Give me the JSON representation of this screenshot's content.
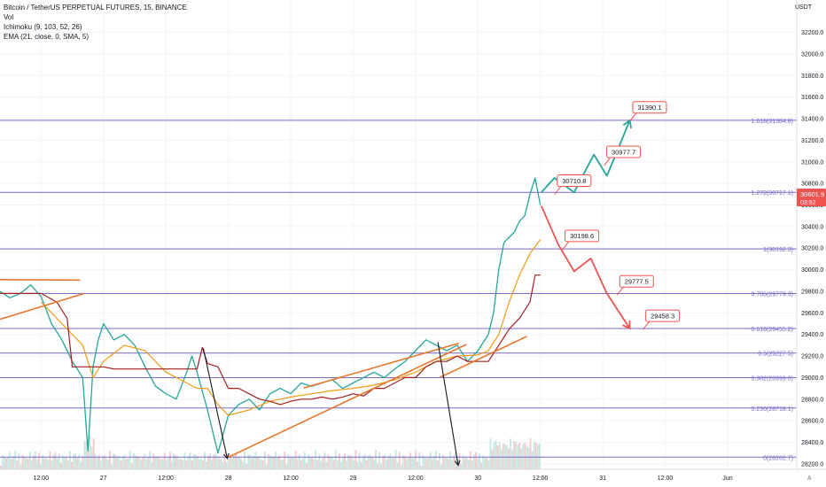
{
  "legend": {
    "symbol": "Bitcoin / TetherUS PERPETUAL FUTURES, 15, BINANCE",
    "vol": "Vol",
    "ichimoku": "Ichimoku (9, 103, 52, 26)",
    "ema": "EMA (21, close, 0, SMA, 5)"
  },
  "currency": "USDT",
  "last_price": {
    "value": "30601.9",
    "countdown": "03:52",
    "color": "#ef5350"
  },
  "chart_data": {
    "type": "line",
    "title": "Bitcoin / TetherUS PERPETUAL FUTURES, 15, BINANCE",
    "xlabel": "",
    "ylabel": "",
    "ylim": [
      28150,
      32500
    ],
    "y_ticks": [
      28200,
      28400,
      28600,
      28800,
      29000,
      29200,
      29400,
      29600,
      29800,
      30000,
      30200,
      30400,
      30600,
      30800,
      31000,
      31200,
      31400,
      31600,
      31800,
      32000,
      32200
    ],
    "x_ticks": [
      {
        "label": "12:00",
        "t": 0
      },
      {
        "label": "27",
        "t": 12
      },
      {
        "label": "12:00",
        "t": 24
      },
      {
        "label": "28",
        "t": 36
      },
      {
        "label": "12:00",
        "t": 48
      },
      {
        "label": "29",
        "t": 60
      },
      {
        "label": "12:00",
        "t": 72
      },
      {
        "label": "30",
        "t": 84
      },
      {
        "label": "12:00",
        "t": 96
      },
      {
        "label": "31",
        "t": 108
      },
      {
        "label": "12:00",
        "t": 120
      },
      {
        "label": "Jun",
        "t": 132
      }
    ],
    "xlim": [
      -7.9,
      145.3
    ],
    "fib_levels": [
      {
        "label": "1.618(31384.8)",
        "value": 31384.8
      },
      {
        "label": "1.272(30717.1)",
        "value": 30717.1
      },
      {
        "label": "1(30192.3)",
        "value": 30192.3
      },
      {
        "label": "0.786(29779.3)",
        "value": 29779.3
      },
      {
        "label": "0.618(29455.2)",
        "value": 29455.2
      },
      {
        "label": "0.5(29227.5)",
        "value": 29227.5
      },
      {
        "label": "0.382(28999.8)",
        "value": 28999.8
      },
      {
        "label": "0.236(28718.1)",
        "value": 28718.1
      },
      {
        "label": "0(28262.7)",
        "value": 28262.7
      }
    ],
    "series": [
      {
        "name": "",
        "color": "#26a69a",
        "x": [
          -7.9,
          -6,
          -4,
          -2,
          0,
          2,
          4,
          6,
          8,
          9,
          10,
          11,
          12,
          14,
          16,
          18,
          20,
          22,
          24,
          26,
          28,
          29,
          30,
          32,
          34,
          36,
          38,
          40,
          42,
          44,
          46,
          48,
          50,
          52,
          54,
          56,
          58,
          60,
          62,
          64,
          66,
          68,
          70,
          72,
          74,
          76,
          78,
          80,
          82,
          84,
          86,
          87,
          88,
          89,
          90,
          91,
          92,
          93,
          94,
          95,
          96
        ],
        "y": [
          29800,
          29740,
          29780,
          29860,
          29750,
          29500,
          29350,
          29150,
          29000,
          28320,
          29100,
          29350,
          29500,
          29350,
          29400,
          29300,
          29100,
          28920,
          28850,
          28800,
          29050,
          29200,
          29050,
          28700,
          28300,
          28650,
          28750,
          28800,
          28700,
          28850,
          28900,
          28850,
          28950,
          28920,
          28950,
          28980,
          28900,
          28950,
          29000,
          29050,
          29000,
          29080,
          29150,
          29250,
          29350,
          29300,
          29250,
          29300,
          29150,
          29250,
          29400,
          29600,
          30000,
          30250,
          30300,
          30350,
          30450,
          30500,
          30700,
          30850,
          30600
        ]
      },
      {
        "name": "",
        "color": "#f39c12",
        "x": [
          0,
          4,
          8,
          10,
          12,
          16,
          20,
          24,
          28,
          30,
          32,
          34,
          36,
          40,
          44,
          48,
          52,
          56,
          60,
          64,
          68,
          72,
          76,
          80,
          84,
          86,
          88,
          90,
          92,
          94,
          96
        ],
        "y": [
          29700,
          29500,
          29300,
          29000,
          29150,
          29300,
          29250,
          29050,
          28950,
          28900,
          28900,
          28750,
          28650,
          28700,
          28780,
          28820,
          28850,
          28880,
          28900,
          28930,
          28980,
          29050,
          29150,
          29200,
          29210,
          29250,
          29400,
          29700,
          29950,
          30150,
          30280
        ]
      },
      {
        "name": "",
        "color": "#a31f1f",
        "x": [
          -7.9,
          0,
          3,
          5,
          6,
          12,
          14,
          18,
          20,
          22,
          26,
          28,
          30,
          31,
          32,
          34,
          36,
          38,
          40,
          42,
          44,
          46,
          48,
          50,
          52,
          54,
          56,
          58,
          60,
          62,
          64,
          66,
          68,
          70,
          72,
          74,
          76,
          78,
          80,
          82,
          84,
          86,
          88,
          90,
          92,
          94,
          95,
          96
        ],
        "y": [
          29780,
          29780,
          29700,
          29550,
          29100,
          29100,
          29080,
          29080,
          29080,
          29080,
          29080,
          29080,
          29080,
          29280,
          29130,
          29100,
          28900,
          28900,
          28850,
          28800,
          28780,
          28750,
          28780,
          28800,
          28800,
          28820,
          28800,
          28820,
          28850,
          28830,
          28900,
          28900,
          28950,
          29000,
          29000,
          29100,
          29150,
          29150,
          29200,
          29150,
          29150,
          29150,
          29300,
          29450,
          29550,
          29700,
          29950,
          29950
        ]
      }
    ],
    "trendlines": [
      {
        "color": "#e8762b",
        "x": [
          -7.9,
          7.5
        ],
        "y": [
          29908,
          29904
        ]
      },
      {
        "color": "#e8762b",
        "x": [
          -7.9,
          8.3
        ],
        "y": [
          29540,
          29780
        ]
      },
      {
        "color": "#e8762b",
        "x": [
          36,
          81.8
        ],
        "y": [
          28262,
          29308
        ]
      },
      {
        "color": "#e8762b",
        "x": [
          50.5,
          80.3
        ],
        "y": [
          28904,
          29318
        ]
      },
      {
        "color": "#e8762b",
        "x": [
          76.7,
          93.4
        ],
        "y": [
          29002,
          29382
        ]
      }
    ],
    "arrows": [
      {
        "color": "#131722",
        "x": [
          31.2,
          35.8
        ],
        "y": [
          29269,
          28251
        ]
      },
      {
        "color": "#131722",
        "x": [
          76.3,
          80.2
        ],
        "y": [
          29328,
          28187
        ]
      }
    ],
    "projections": [
      {
        "color": "#26a69a",
        "x": [
          96.2,
          98.7,
          102.5,
          106.3,
          108.8,
          113.2
        ],
        "y": [
          30717,
          30850,
          30717,
          31067,
          30870,
          31384
        ]
      },
      {
        "color": "#ef5350",
        "x": [
          96.2,
          99.4,
          102.5,
          105.7,
          108.8,
          113.2
        ],
        "y": [
          30590,
          30237,
          29984,
          30105,
          29779,
          29455
        ]
      }
    ],
    "annotations": [
      {
        "label": "31390.1",
        "x": 117,
        "y": 31390.1
      },
      {
        "label": "30977.7",
        "x": 112,
        "y": 30977.7
      },
      {
        "label": "30710.8",
        "x": 102.5,
        "y": 30710.8
      },
      {
        "label": "30198.6",
        "x": 104,
        "y": 30198.6
      },
      {
        "label": "29777.5",
        "x": 114.5,
        "y": 29777.5
      },
      {
        "label": "29458.3",
        "x": 119.5,
        "y": 29458.3
      }
    ]
  }
}
